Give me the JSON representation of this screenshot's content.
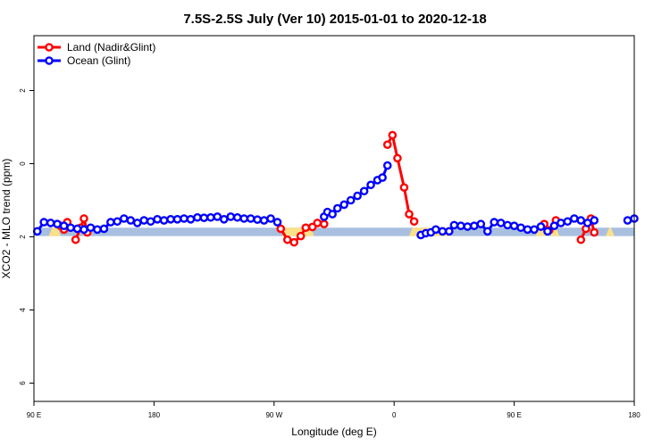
{
  "chart_data": {
    "type": "line",
    "title": "7.5S-2.5S July (Ver 10)   2015-01-01 to 2020-12-18",
    "xlabel": "Longitude (deg E)",
    "ylabel": "XCO2 - MLO trend (ppm)",
    "xlim": [
      90,
      450
    ],
    "ylim": [
      -6.5,
      3.5
    ],
    "x_ticks": [
      {
        "value": 90,
        "label": "90 E"
      },
      {
        "value": 162,
        "label": "180"
      },
      {
        "value": 234,
        "label": "90 W"
      },
      {
        "value": 306,
        "label": "0"
      },
      {
        "value": 378,
        "label": "90 E"
      },
      {
        "value": 450,
        "label": "180"
      }
    ],
    "y_ticks": [
      {
        "value": 2,
        "label": "2"
      },
      {
        "value": 0,
        "label": "0"
      },
      {
        "value": -2,
        "label": "2"
      },
      {
        "value": -4,
        "label": "4"
      },
      {
        "value": -6,
        "label": "6"
      }
    ],
    "grid": false,
    "legend_position": "top-left",
    "land_band": {
      "y_top": -1.75,
      "y_bottom": -1.98,
      "base_color": "#a8bfe0",
      "land_color": "#fde08a",
      "land_spans": [
        [
          101,
          104
        ],
        [
          241,
          256
        ],
        [
          317,
          338
        ],
        [
          393,
          395
        ],
        [
          402,
          403
        ],
        [
          435,
          436
        ]
      ]
    },
    "series": [
      {
        "name": "Land (Nadir&Glint)",
        "color": "#ff0000",
        "segments": [
          [
            [
              104,
              -1.65
            ],
            [
              106,
              -1.7
            ],
            [
              108,
              -1.8
            ]
          ],
          [
            [
              110,
              -1.6
            ]
          ],
          [
            [
              115,
              -2.08
            ],
            [
              118,
              -1.75
            ],
            [
              120,
              -1.5
            ],
            [
              122,
              -1.88
            ]
          ],
          [
            [
              238,
              -1.78
            ],
            [
              242,
              -2.08
            ],
            [
              246,
              -2.15
            ],
            [
              250,
              -1.98
            ],
            [
              253,
              -1.75
            ],
            [
              257,
              -1.73
            ],
            [
              260,
              -1.62
            ],
            [
              264,
              -1.65
            ]
          ],
          [
            [
              302,
              0.52
            ],
            [
              305,
              0.78
            ],
            [
              308,
              0.15
            ],
            [
              312,
              -0.65
            ],
            [
              315,
              -1.38
            ],
            [
              318,
              -1.58
            ]
          ],
          [
            [
              396,
              -1.65
            ],
            [
              399,
              -1.82
            ],
            [
              403,
              -1.55
            ]
          ],
          [
            [
              418,
              -2.08
            ],
            [
              421,
              -1.78
            ],
            [
              424,
              -1.5
            ],
            [
              426,
              -1.88
            ]
          ]
        ]
      },
      {
        "name": "Ocean (Glint)",
        "color": "#0000ff",
        "segments": [
          [
            [
              92,
              -1.85
            ],
            [
              96,
              -1.6
            ],
            [
              100,
              -1.62
            ],
            [
              104,
              -1.65
            ],
            [
              108,
              -1.7
            ],
            [
              112,
              -1.75
            ],
            [
              116,
              -1.78
            ],
            [
              120,
              -1.8
            ],
            [
              124,
              -1.75
            ],
            [
              128,
              -1.8
            ],
            [
              132,
              -1.78
            ],
            [
              136,
              -1.6
            ],
            [
              140,
              -1.58
            ],
            [
              144,
              -1.5
            ],
            [
              148,
              -1.55
            ],
            [
              152,
              -1.62
            ],
            [
              156,
              -1.55
            ],
            [
              160,
              -1.58
            ],
            [
              164,
              -1.52
            ],
            [
              168,
              -1.55
            ],
            [
              172,
              -1.52
            ],
            [
              176,
              -1.52
            ],
            [
              180,
              -1.5
            ],
            [
              184,
              -1.52
            ],
            [
              188,
              -1.47
            ],
            [
              192,
              -1.48
            ],
            [
              196,
              -1.47
            ],
            [
              200,
              -1.45
            ],
            [
              204,
              -1.52
            ],
            [
              208,
              -1.45
            ],
            [
              212,
              -1.47
            ],
            [
              216,
              -1.5
            ],
            [
              220,
              -1.5
            ],
            [
              224,
              -1.53
            ],
            [
              228,
              -1.55
            ],
            [
              232,
              -1.5
            ],
            [
              236,
              -1.6
            ]
          ],
          [
            [
              264,
              -1.45
            ],
            [
              266,
              -1.32
            ],
            [
              269,
              -1.38
            ],
            [
              272,
              -1.22
            ],
            [
              276,
              -1.12
            ],
            [
              280,
              -1.0
            ],
            [
              284,
              -0.88
            ],
            [
              288,
              -0.75
            ],
            [
              292,
              -0.58
            ],
            [
              296,
              -0.45
            ],
            [
              299,
              -0.38
            ],
            [
              302,
              -0.05
            ]
          ],
          [
            [
              322,
              -1.95
            ],
            [
              325,
              -1.9
            ],
            [
              328,
              -1.88
            ],
            [
              331,
              -1.8
            ],
            [
              335,
              -1.85
            ],
            [
              339,
              -1.85
            ],
            [
              342,
              -1.68
            ],
            [
              346,
              -1.7
            ],
            [
              350,
              -1.72
            ],
            [
              354,
              -1.7
            ],
            [
              358,
              -1.65
            ],
            [
              362,
              -1.85
            ],
            [
              366,
              -1.6
            ],
            [
              370,
              -1.62
            ],
            [
              374,
              -1.68
            ],
            [
              378,
              -1.7
            ],
            [
              382,
              -1.75
            ],
            [
              386,
              -1.8
            ],
            [
              390,
              -1.8
            ],
            [
              394,
              -1.72
            ],
            [
              398,
              -1.85
            ],
            [
              402,
              -1.7
            ],
            [
              406,
              -1.62
            ],
            [
              410,
              -1.58
            ],
            [
              414,
              -1.5
            ],
            [
              418,
              -1.55
            ],
            [
              422,
              -1.62
            ],
            [
              426,
              -1.55
            ]
          ],
          [
            [
              446,
              -1.55
            ],
            [
              450,
              -1.5
            ]
          ]
        ]
      }
    ]
  }
}
